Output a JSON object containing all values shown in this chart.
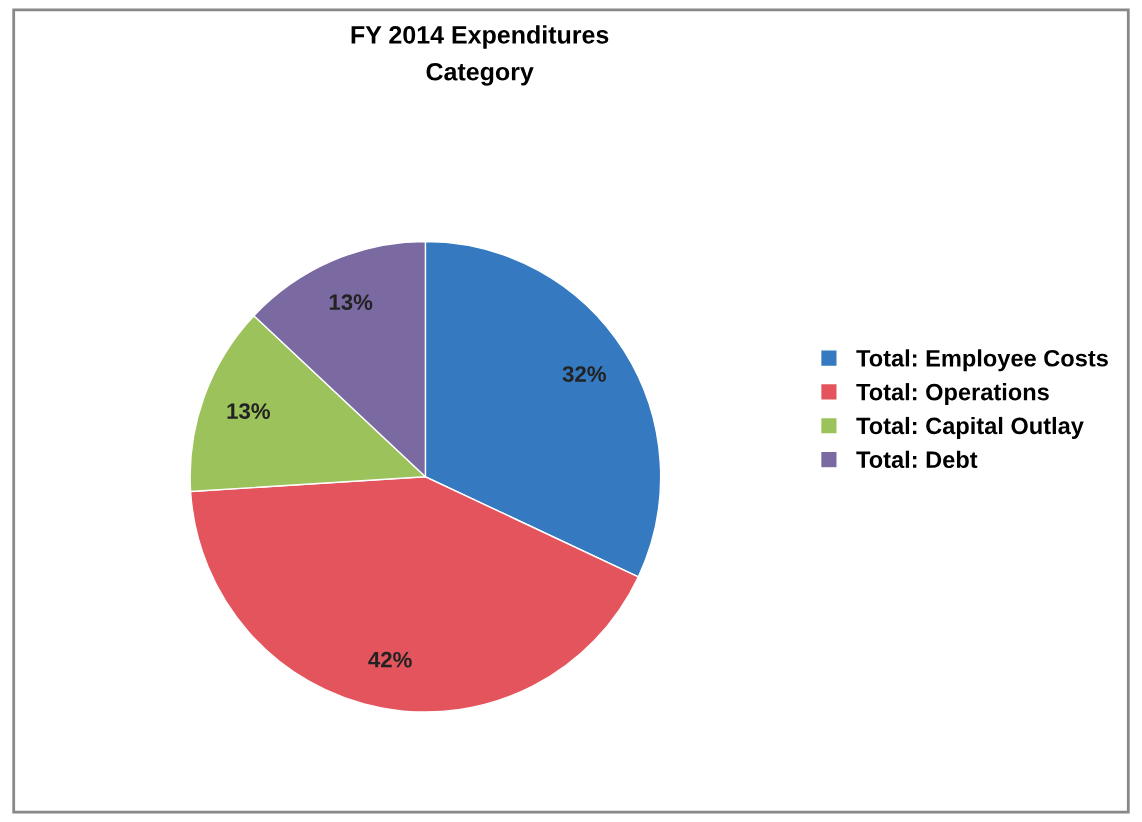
{
  "chart_data": {
    "type": "pie",
    "title": "FY 2014 Expenditures",
    "subtitle": "Category",
    "categories": [
      "Total: Employee Costs",
      "Total: Operations",
      "Total: Capital Outlay",
      "Total: Debt"
    ],
    "values": [
      32,
      42,
      13,
      13
    ],
    "value_labels": [
      "32%",
      "42%",
      "13%",
      "13%"
    ],
    "colors": [
      "#3579c0",
      "#e4545c",
      "#9cc25c",
      "#7b6aa2"
    ],
    "legend": "right"
  }
}
